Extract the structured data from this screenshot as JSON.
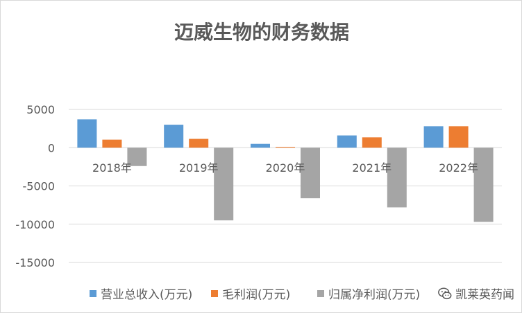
{
  "chart_data": {
    "type": "bar",
    "title": "迈威生物的财务数据",
    "categories": [
      "2018年",
      "2019年",
      "2020年",
      "2021年",
      "2022年"
    ],
    "series": [
      {
        "name": "营业总收入(万元)",
        "color": "#5b9bd5",
        "values": [
          3700,
          3000,
          500,
          1600,
          2800
        ]
      },
      {
        "name": "毛利润(万元)",
        "color": "#ed7d31",
        "values": [
          1050,
          1150,
          100,
          1350,
          2800
        ]
      },
      {
        "name": "归属净利润(万元)",
        "color": "#a5a5a5",
        "values": [
          -2400,
          -9500,
          -6600,
          -7800,
          -9700
        ]
      }
    ],
    "ylim": [
      -15000,
      5000
    ],
    "yticks": [
      5000,
      0,
      -5000,
      -10000,
      -15000
    ],
    "ytick_labels": [
      "5000",
      "0",
      "-5000",
      "-10000",
      "-15000"
    ],
    "grid": true,
    "legend_position": "bottom"
  },
  "watermark": {
    "text": "凯莱英药闻",
    "icon": "wechat-icon"
  }
}
